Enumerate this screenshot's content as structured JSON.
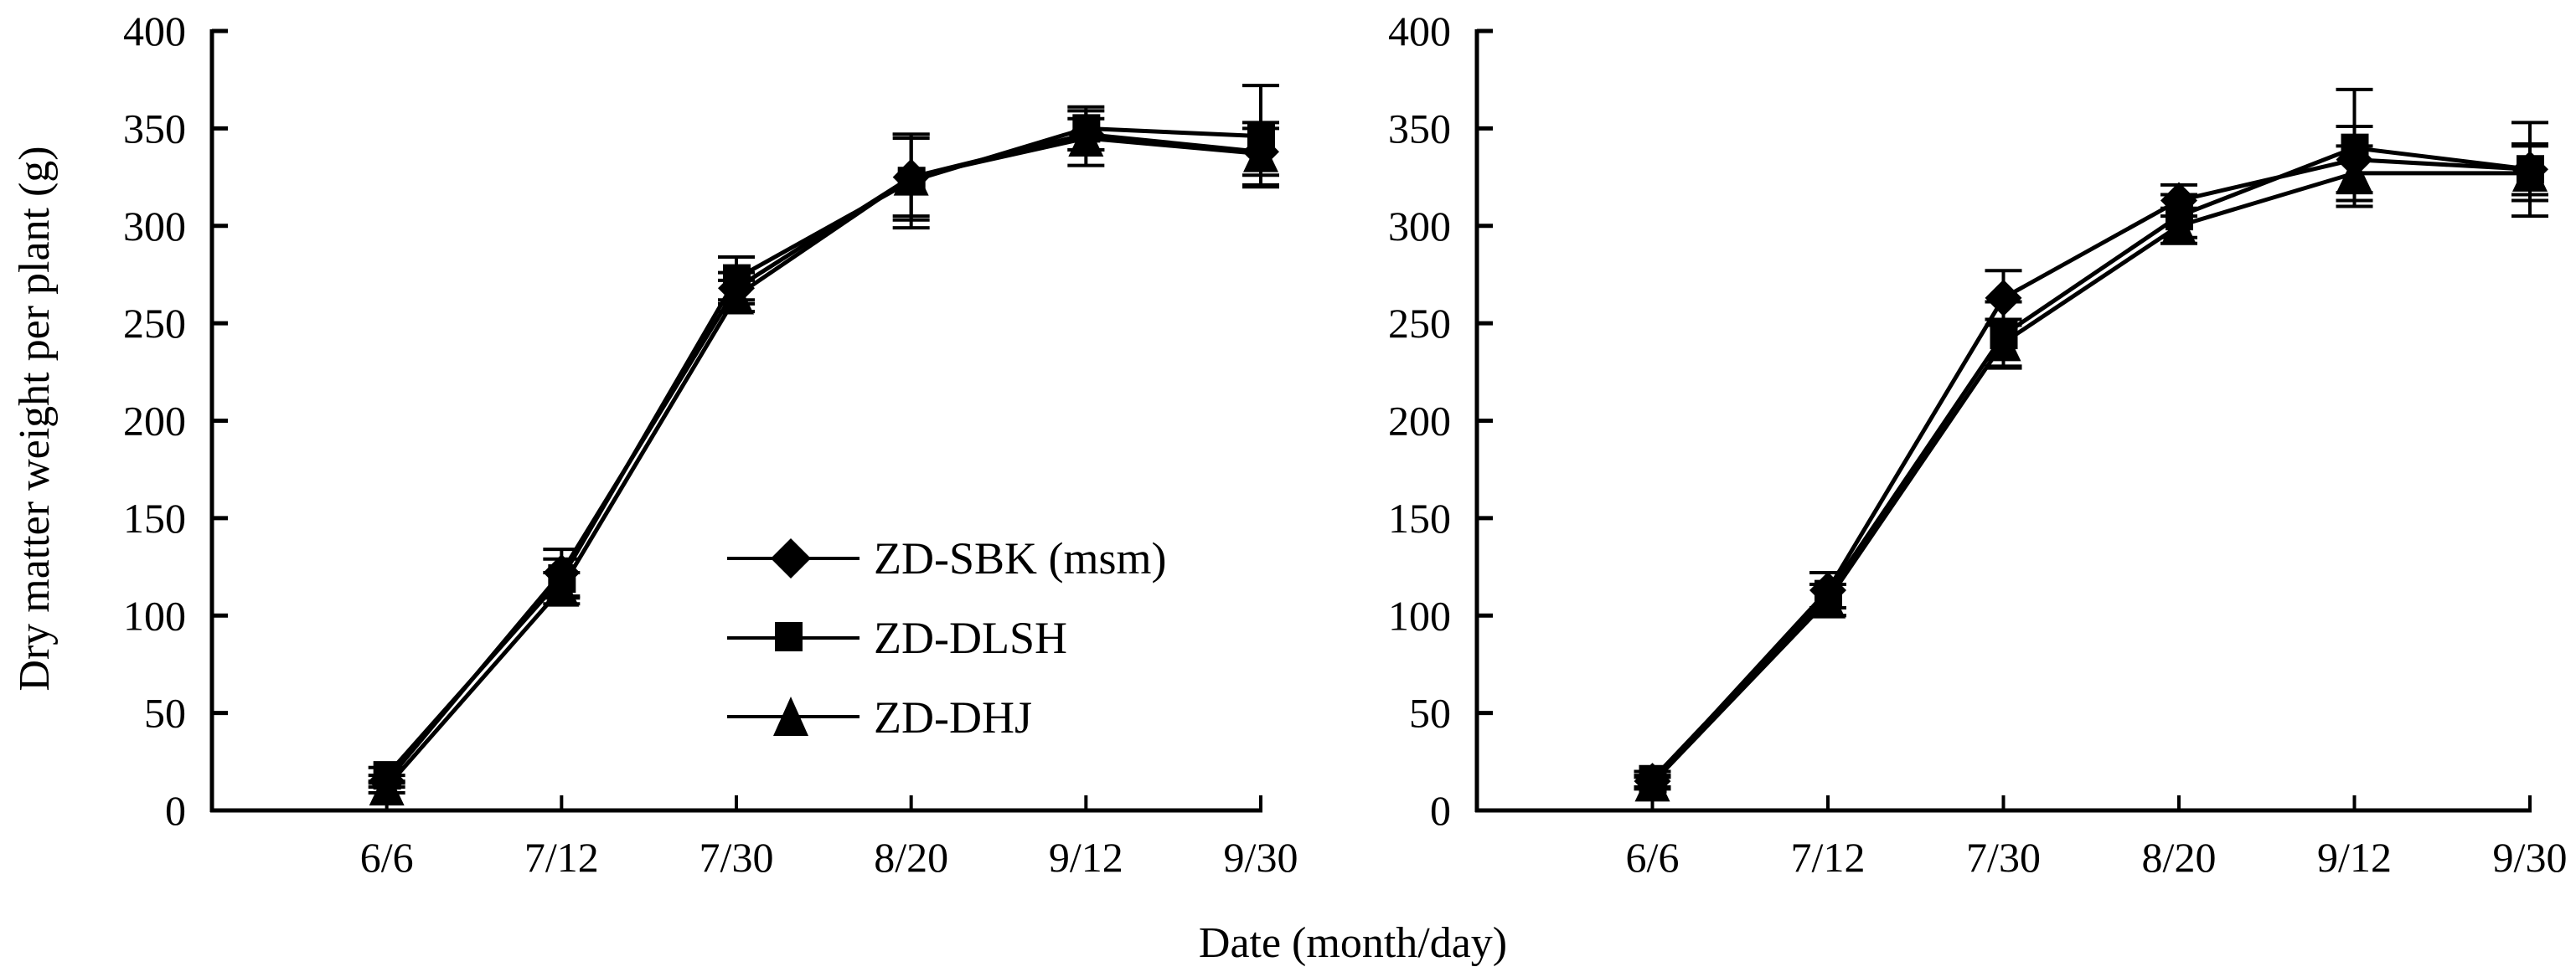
{
  "figure": {
    "shared_xlabel": "Date (month/day)",
    "shared_ylabel": "Dry matter weight per plant (g)"
  },
  "legend": {
    "placement": "inside left panel, center-right",
    "items": [
      {
        "label": "ZD-SBK (msm)",
        "marker": "diamond"
      },
      {
        "label": "ZD-DLSH",
        "marker": "square"
      },
      {
        "label": "ZD-DHJ",
        "marker": "triangle"
      }
    ]
  },
  "colors": {
    "line": "#000000",
    "marker": "#000000",
    "background": "#ffffff"
  },
  "chart_data": [
    {
      "type": "line",
      "panel": "left",
      "title": "",
      "xlabel": "Date (month/day)",
      "ylabel": "Dry matter weight per plant (g)",
      "categories": [
        "6/6",
        "7/12",
        "7/30",
        "8/20",
        "9/12",
        "9/30"
      ],
      "ylim": [
        0,
        400
      ],
      "yticks": [
        0,
        50,
        100,
        150,
        200,
        250,
        300,
        350,
        400
      ],
      "grid": false,
      "error_bars": true,
      "series": [
        {
          "name": "ZD-SBK (msm)",
          "marker": "diamond",
          "values": [
            15,
            122,
            268,
            325,
            347,
            338
          ],
          "errors": [
            3,
            12,
            8,
            22,
            8,
            12
          ]
        },
        {
          "name": "ZD-DLSH",
          "marker": "square",
          "values": [
            18,
            119,
            273,
            323,
            350,
            346
          ],
          "errors": [
            4,
            10,
            11,
            24,
            11,
            26
          ]
        },
        {
          "name": "ZD-DHJ",
          "marker": "triangle",
          "values": [
            12,
            114,
            264,
            325,
            345,
            337
          ],
          "errors": [
            3,
            8,
            8,
            20,
            14,
            16
          ]
        }
      ]
    },
    {
      "type": "line",
      "panel": "right",
      "title": "",
      "xlabel": "Date (month/day)",
      "ylabel": "",
      "categories": [
        "6/6",
        "7/12",
        "7/30",
        "8/20",
        "9/12",
        "9/30"
      ],
      "ylim": [
        0,
        400
      ],
      "yticks": [
        0,
        50,
        100,
        150,
        200,
        250,
        300,
        350,
        400
      ],
      "grid": false,
      "error_bars": true,
      "series": [
        {
          "name": "ZD-SBK (msm)",
          "marker": "diamond",
          "values": [
            15,
            113,
            263,
            313,
            334,
            329
          ],
          "errors": [
            3,
            9,
            14,
            8,
            17,
            13
          ]
        },
        {
          "name": "ZD-DLSH",
          "marker": "square",
          "values": [
            16,
            111,
            244,
            305,
            340,
            329
          ],
          "errors": [
            4,
            11,
            17,
            11,
            30,
            24
          ]
        },
        {
          "name": "ZD-DHJ",
          "marker": "triangle",
          "values": [
            14,
            108,
            240,
            300,
            327,
            327
          ],
          "errors": [
            3,
            8,
            12,
            9,
            14,
            14
          ]
        }
      ]
    }
  ]
}
